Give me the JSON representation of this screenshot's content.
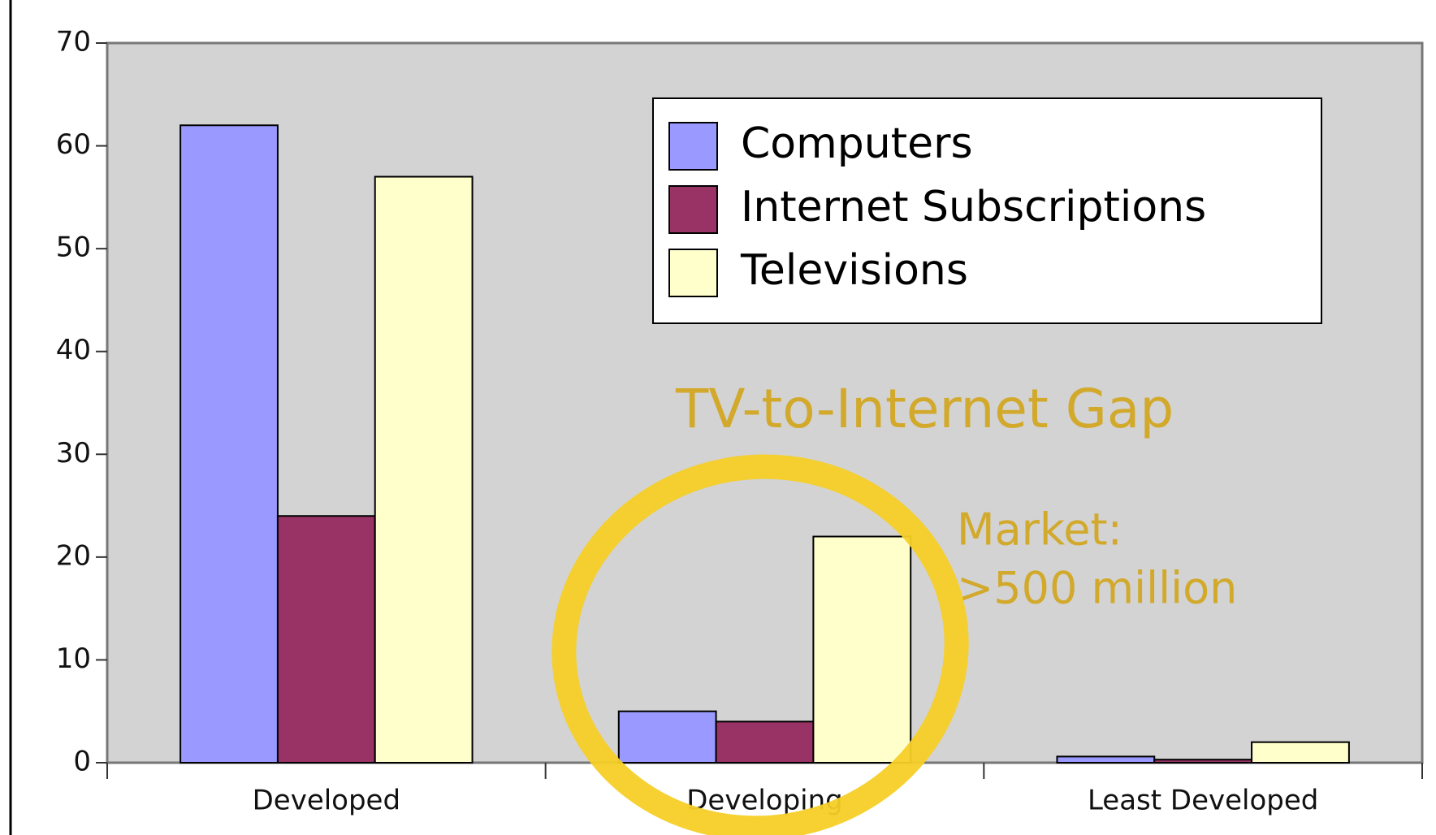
{
  "chart_data": {
    "type": "bar",
    "categories": [
      "Developed",
      "Developing",
      "Least Developed"
    ],
    "series": [
      {
        "name": "Computers",
        "color": "#9999ff",
        "values": [
          62,
          5,
          0.6
        ]
      },
      {
        "name": "Internet Subscriptions",
        "color": "#993366",
        "values": [
          24,
          4,
          0.3
        ]
      },
      {
        "name": "Televisions",
        "color": "#ffffcc",
        "values": [
          57,
          22,
          2
        ]
      }
    ],
    "ylim": [
      0,
      70
    ],
    "yticks": [
      0,
      10,
      20,
      30,
      40,
      50,
      60,
      70
    ],
    "annotations": [
      "TV-to-Internet Gap",
      "Market:",
      ">500 million"
    ]
  }
}
